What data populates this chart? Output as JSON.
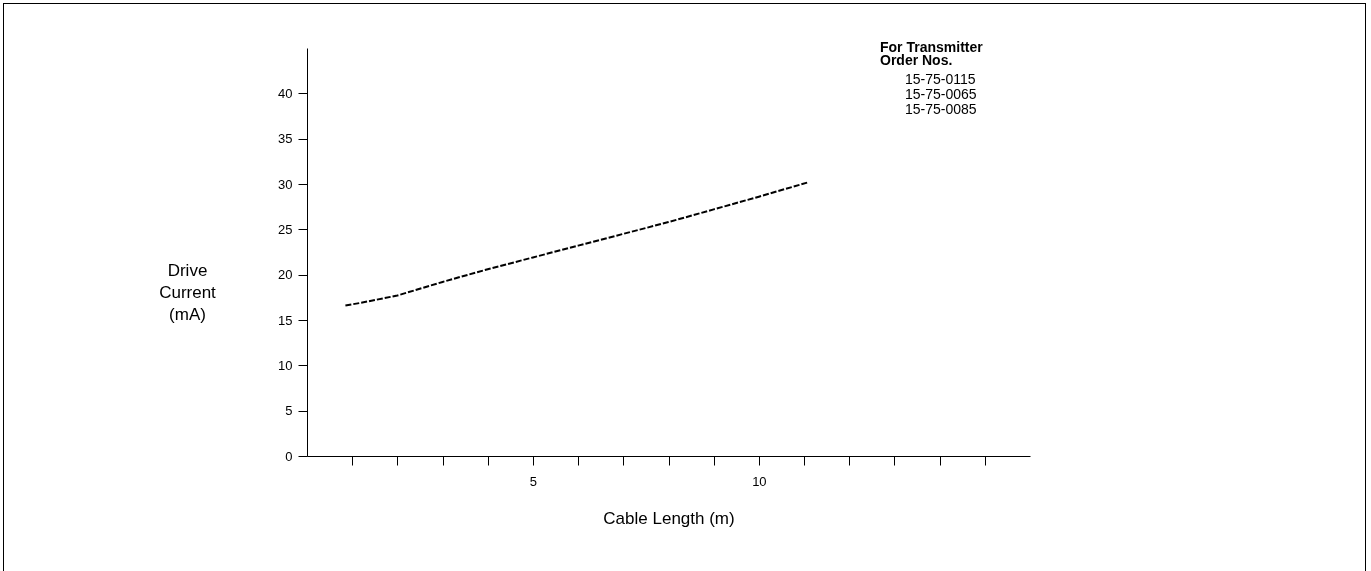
{
  "chart_data": {
    "type": "line",
    "xlabel": "Cable Length (m)",
    "ylabel": "Drive Current (mA)",
    "annotations": [
      "For Transmitter",
      "Order Nos.",
      "15-75-0115",
      "15-75-0065",
      "15-75-0085"
    ],
    "xlim": [
      0,
      16
    ],
    "ylim": [
      0,
      45
    ],
    "xticks": [
      {
        "value": 1,
        "label": null
      },
      {
        "value": 2,
        "label": null
      },
      {
        "value": 3,
        "label": null
      },
      {
        "value": 4,
        "label": null
      },
      5,
      {
        "value": 6,
        "label": null
      },
      {
        "value": 7,
        "label": null
      },
      {
        "value": 8,
        "label": null
      },
      {
        "value": 9,
        "label": null
      },
      10,
      {
        "value": 11,
        "label": null
      },
      {
        "value": 12,
        "label": null
      },
      {
        "value": 13,
        "label": null
      },
      {
        "value": 14,
        "label": null
      },
      {
        "value": 15,
        "label": null
      }
    ],
    "yticks": [
      0,
      5,
      10,
      15,
      20,
      25,
      30,
      35,
      40
    ],
    "grid": false,
    "legend": false,
    "marker": "none",
    "line_style": "dashed",
    "series": [
      {
        "color": "#000000",
        "x": [
          0.85,
          1.2,
          2.0,
          3.0,
          4.0,
          5.0,
          6.0,
          7.0,
          8.0,
          9.0,
          10.0,
          11.1
        ],
        "values": [
          16.6,
          16.9,
          17.7,
          19.2,
          20.6,
          21.9,
          23.2,
          24.5,
          25.8,
          27.2,
          28.6,
          30.2
        ]
      }
    ]
  }
}
